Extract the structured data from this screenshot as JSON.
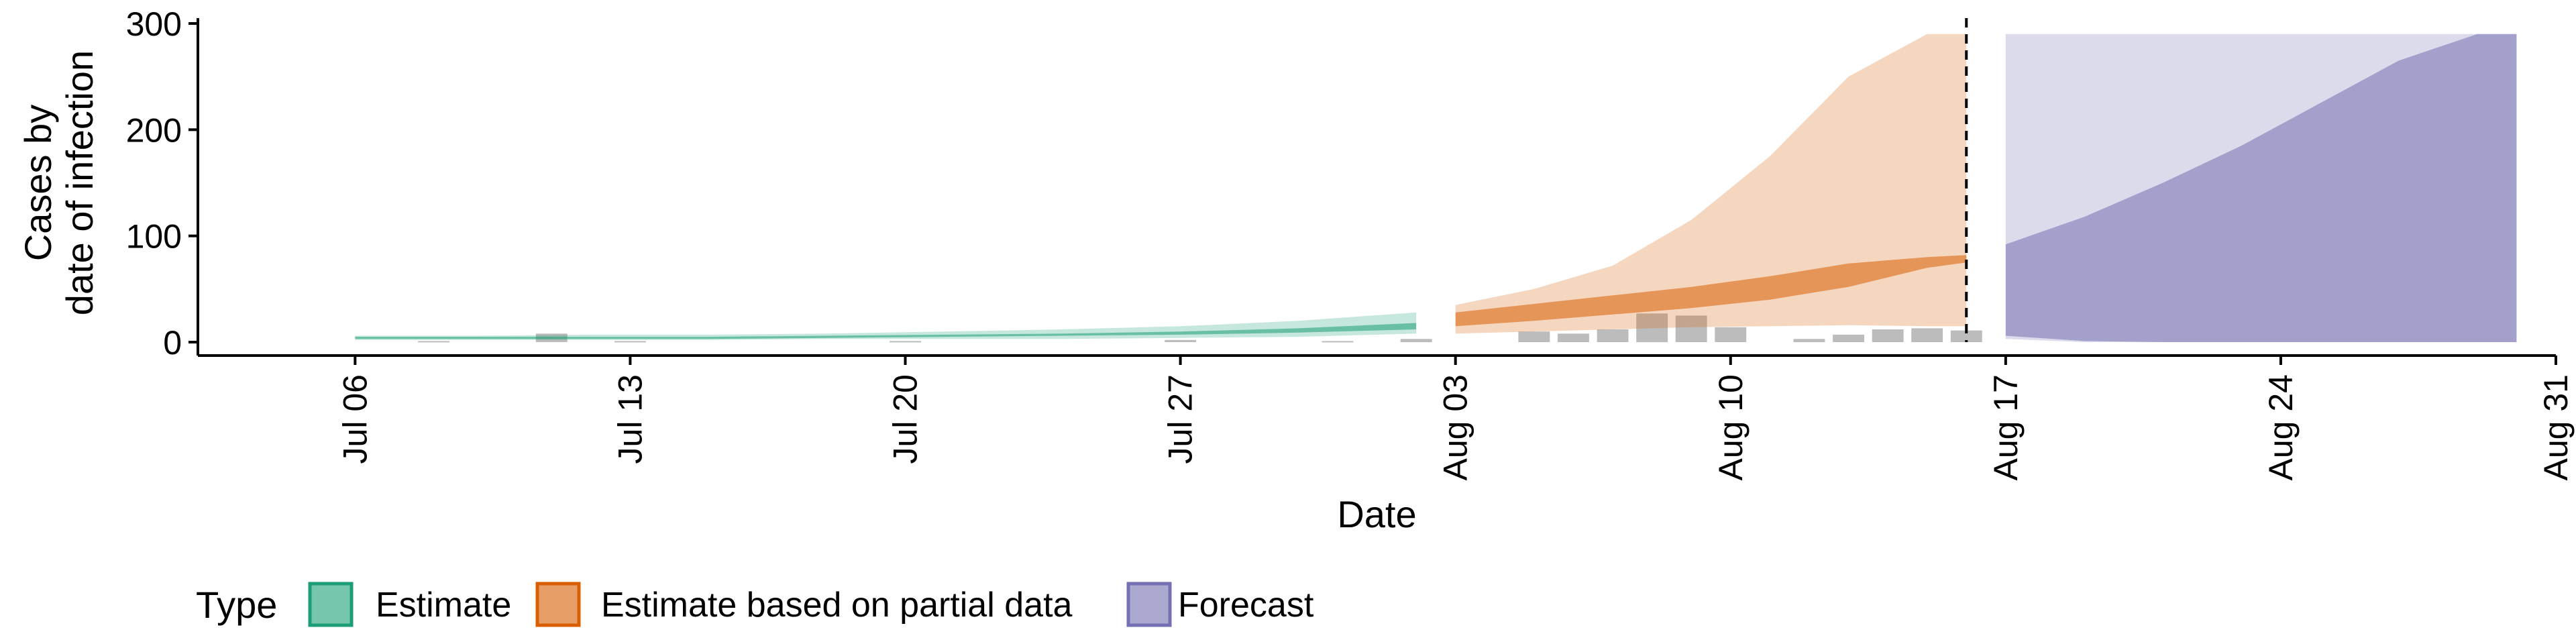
{
  "chart_data": {
    "type": "area",
    "title": "",
    "xlabel": "Date",
    "ylabel_lines": [
      "Cases by",
      "date of infection"
    ],
    "ylim": [
      0,
      300
    ],
    "y_ticks": [
      0,
      100,
      200,
      300
    ],
    "x_range": [
      "2020-07-02",
      "2020-08-31"
    ],
    "x_ticks": [
      {
        "date": "2020-07-06",
        "label": "Jul 06"
      },
      {
        "date": "2020-07-13",
        "label": "Jul 13"
      },
      {
        "date": "2020-07-20",
        "label": "Jul 20"
      },
      {
        "date": "2020-07-27",
        "label": "Jul 27"
      },
      {
        "date": "2020-08-03",
        "label": "Aug 03"
      },
      {
        "date": "2020-08-10",
        "label": "Aug 10"
      },
      {
        "date": "2020-08-17",
        "label": "Aug 17"
      },
      {
        "date": "2020-08-24",
        "label": "Aug 24"
      },
      {
        "date": "2020-08-31",
        "label": "Aug 31"
      }
    ],
    "reported_cases": [
      {
        "date": "2020-07-08",
        "value": 1
      },
      {
        "date": "2020-07-11",
        "value": 8
      },
      {
        "date": "2020-07-13",
        "value": 1
      },
      {
        "date": "2020-07-20",
        "value": 1
      },
      {
        "date": "2020-07-27",
        "value": 2
      },
      {
        "date": "2020-07-31",
        "value": 1
      },
      {
        "date": "2020-08-02",
        "value": 3
      },
      {
        "date": "2020-08-05",
        "value": 10
      },
      {
        "date": "2020-08-06",
        "value": 8
      },
      {
        "date": "2020-08-07",
        "value": 12
      },
      {
        "date": "2020-08-08",
        "value": 27
      },
      {
        "date": "2020-08-09",
        "value": 25
      },
      {
        "date": "2020-08-10",
        "value": 14
      },
      {
        "date": "2020-08-12",
        "value": 3
      },
      {
        "date": "2020-08-13",
        "value": 7
      },
      {
        "date": "2020-08-14",
        "value": 12
      },
      {
        "date": "2020-08-15",
        "value": 13
      },
      {
        "date": "2020-08-16",
        "value": 11
      }
    ],
    "series": [
      {
        "name": "Estimate",
        "color": "#1b9e77",
        "x": [
          "2020-07-06",
          "2020-07-09",
          "2020-07-12",
          "2020-07-15",
          "2020-07-18",
          "2020-07-21",
          "2020-07-24",
          "2020-07-27",
          "2020-07-30",
          "2020-08-02"
        ],
        "outer_lower": [
          2,
          2,
          2,
          2,
          3,
          3,
          3,
          4,
          5,
          8
        ],
        "outer_upper": [
          6,
          6,
          7,
          7,
          8,
          10,
          12,
          15,
          20,
          28
        ],
        "inner_lower": [
          3,
          3,
          3,
          3,
          4,
          5,
          6,
          7,
          9,
          12
        ],
        "inner_upper": [
          5,
          5,
          5,
          5,
          6,
          7,
          8,
          10,
          13,
          18
        ]
      },
      {
        "name": "Estimate based on partial data",
        "color": "#d95f02",
        "x": [
          "2020-08-03",
          "2020-08-05",
          "2020-08-07",
          "2020-08-09",
          "2020-08-11",
          "2020-08-13",
          "2020-08-15",
          "2020-08-16"
        ],
        "outer_lower": [
          8,
          10,
          12,
          14,
          15,
          16,
          15,
          15
        ],
        "outer_upper": [
          35,
          50,
          72,
          115,
          175,
          250,
          290,
          290
        ],
        "inner_lower": [
          15,
          20,
          26,
          32,
          40,
          52,
          70,
          75
        ],
        "inner_upper": [
          28,
          36,
          44,
          52,
          62,
          74,
          80,
          82
        ]
      },
      {
        "name": "Forecast",
        "color": "#7570b3",
        "x": [
          "2020-08-17",
          "2020-08-19",
          "2020-08-21",
          "2020-08-23",
          "2020-08-25",
          "2020-08-27",
          "2020-08-29",
          "2020-08-30"
        ],
        "outer_lower": [
          3,
          0,
          0,
          0,
          0,
          0,
          0,
          0
        ],
        "outer_upper": [
          290,
          290,
          290,
          290,
          290,
          290,
          290,
          290
        ],
        "inner_lower": [
          6,
          1,
          0,
          0,
          0,
          0,
          0,
          0
        ],
        "inner_upper": [
          92,
          118,
          150,
          185,
          225,
          265,
          290,
          290
        ]
      }
    ],
    "forecast_divider_date": "2020-08-16",
    "legend": {
      "title": "Type",
      "placement": "bottom-left",
      "entries": [
        "Estimate",
        "Estimate based on partial data",
        "Forecast"
      ]
    },
    "colors": {
      "estimate": "#1b9e77",
      "partial": "#d95f02",
      "forecast": "#7570b3",
      "reported_bars": "#a0a0a0",
      "axis": "#000000"
    }
  }
}
